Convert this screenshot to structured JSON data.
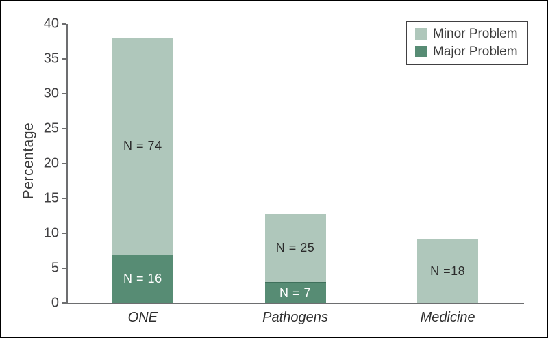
{
  "style": {
    "background": "#ffffff",
    "frame_color": "#000000",
    "axis_color": "#6d6e70",
    "text_color": "#2e2e2e",
    "tick_text_color": "#414042",
    "minor_color": "#afc7bb",
    "major_color": "#578c74"
  },
  "chart_data": {
    "type": "bar",
    "stacked": true,
    "title": "",
    "xlabel": "",
    "ylabel": "Percentage",
    "ylim": [
      0,
      40
    ],
    "yticks": [
      0,
      5,
      10,
      15,
      20,
      25,
      30,
      35,
      40
    ],
    "grid": false,
    "categories": [
      "ONE",
      "Pathogens",
      "Medicine"
    ],
    "series": [
      {
        "name": "Major Problem",
        "color": "#578c74",
        "values": [
          7,
          3,
          0
        ],
        "bar_labels": [
          "N = 16",
          "N = 7",
          ""
        ],
        "label_color": "#ffffff"
      },
      {
        "name": "Minor Problem",
        "color": "#afc7bb",
        "values": [
          31,
          9.7,
          9.1
        ],
        "bar_labels": [
          "N = 74",
          "N = 25",
          "N =18"
        ],
        "label_color": "#2b2b2b"
      }
    ],
    "stack_totals": [
      38,
      12.7,
      9.1
    ],
    "legend": {
      "position": "top-right",
      "entries": [
        {
          "label": "Minor Problem",
          "color": "#afc7bb"
        },
        {
          "label": "Major Problem",
          "color": "#578c74"
        }
      ]
    }
  }
}
